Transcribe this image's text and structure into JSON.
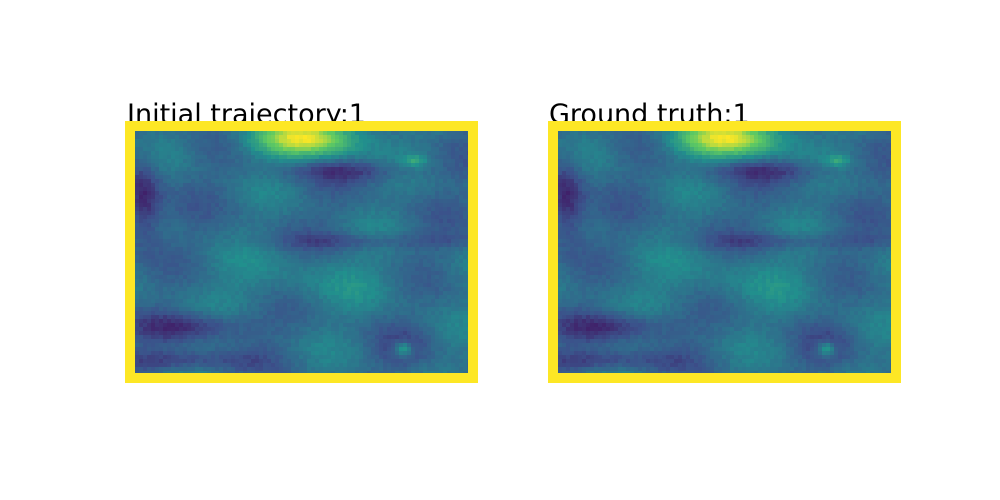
{
  "panels": [
    {
      "title": "Initial trajectory:1"
    },
    {
      "title": "Ground truth:1"
    }
  ],
  "colors": {
    "border": "#fde725",
    "colormap": [
      "#440154",
      "#3b528b",
      "#21908d",
      "#5dc963",
      "#fde725"
    ]
  }
}
